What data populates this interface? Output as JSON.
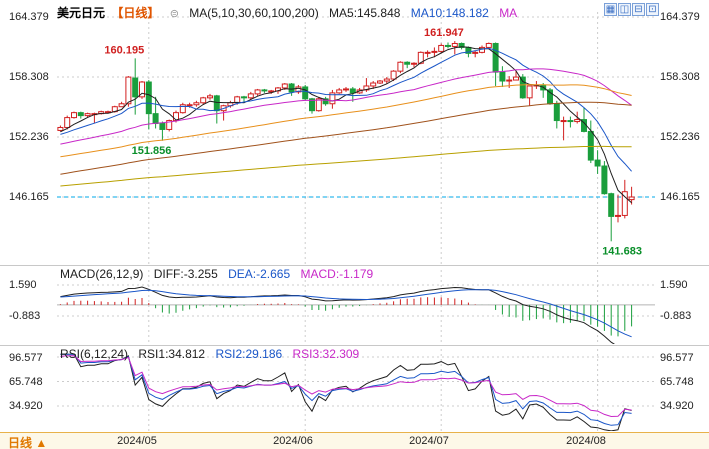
{
  "header": {
    "title": "美元日元",
    "period_tag": "【日线】",
    "settings_icon_glyph": "⊜",
    "ma_group_label": "MA(5,10,30,60,100,200)",
    "ma5_label": "MA5:145.848",
    "ma10_label": "MA10:148.182",
    "ma_extra_label": "MA"
  },
  "toolbar": {
    "icons": [
      "grid-layout",
      "dual-vertical",
      "dual-horizontal",
      "single-view"
    ]
  },
  "price_panel": {
    "axis_labels": [
      "164.379",
      "158.308",
      "152.236",
      "146.165"
    ]
  },
  "macd_panel": {
    "indicator_label": "MACD(26,12,9)",
    "diff_label": "DIFF:-3.255",
    "dea_label": "DEA:-2.665",
    "macd_label": "MACD:-1.179",
    "axis_labels": [
      "1.590",
      "-0.883"
    ]
  },
  "rsi_panel": {
    "indicator_label": "RSI(6,12,24)",
    "rsi1_label": "RSI1:34.812",
    "rsi2_label": "RSI2:29.186",
    "rsi3_label": "RSI3:32.309",
    "axis_labels": [
      "96.577",
      "65.748",
      "34.920"
    ]
  },
  "footer": {
    "period_label": "日线",
    "period_arrow": "▲",
    "dates": [
      "2024/05",
      "2024/06",
      "2024/07",
      "2024/08"
    ]
  },
  "colors": {
    "up": "#d22020",
    "down": "#1a9e3c",
    "ma": [
      "#202020",
      "#1a56c8",
      "#c828c8",
      "#e8901c",
      "#a0521c",
      "#b8a000"
    ],
    "diff": "#202020",
    "dea": "#1a56c8",
    "macd_value": "#c828c8",
    "last_price_line": "#00a8e8",
    "period_accent": "#e07800",
    "tag_accent": "#e05500"
  },
  "chart_data": {
    "type": "candlestick",
    "symbol": "美元日元 (USD/JPY)",
    "period": "daily",
    "last_price": 146.165,
    "price_axis": [
      164.379,
      158.308,
      152.236,
      146.165
    ],
    "macd_axis": [
      1.59,
      -0.883
    ],
    "rsi_axis": [
      96.577,
      65.748,
      34.92
    ],
    "indicators": {
      "ma_periods": [
        5,
        10,
        30,
        60,
        100,
        200
      ],
      "macd": [
        26,
        12,
        9
      ],
      "rsi": [
        6,
        12,
        24
      ]
    },
    "indicator_values": {
      "ma5": 145.848,
      "ma10": 148.182,
      "diff": -3.255,
      "dea": -2.665,
      "macd": -1.179,
      "rsi1": 34.812,
      "rsi2": 29.186,
      "rsi3": 32.309
    },
    "annotations": [
      {
        "text": "160.195",
        "index": 11,
        "value": 160.195,
        "position": "above",
        "align": "end",
        "color": "#d02020"
      },
      {
        "text": "161.947",
        "index": 58,
        "value": 161.947,
        "position": "above",
        "align": "end",
        "color": "#d02020"
      },
      {
        "text": "151.856",
        "index": 15,
        "value": 151.856,
        "position": "below",
        "align": "end",
        "color": "#0a8f2a"
      },
      {
        "text": "141.683",
        "index": 81,
        "value": 141.683,
        "position": "below",
        "align": "start",
        "color": "#0a8f2a"
      }
    ],
    "candles": [
      [
        "04/12",
        152.9,
        153.4,
        152.8,
        153.2
      ],
      [
        "04/15",
        153.2,
        154.4,
        153.0,
        154.2
      ],
      [
        "04/16",
        154.2,
        154.8,
        154.1,
        154.7
      ],
      [
        "04/17",
        154.7,
        154.8,
        154.1,
        154.4
      ],
      [
        "04/18",
        154.4,
        154.7,
        154.2,
        154.6
      ],
      [
        "04/19",
        154.6,
        154.7,
        153.6,
        154.6
      ],
      [
        "04/22",
        154.6,
        154.9,
        154.5,
        154.8
      ],
      [
        "04/23",
        154.8,
        154.9,
        154.6,
        154.8
      ],
      [
        "04/24",
        154.8,
        155.4,
        154.7,
        155.3
      ],
      [
        "04/25",
        155.3,
        155.8,
        155.3,
        155.6
      ],
      [
        "04/26",
        155.6,
        158.4,
        155.3,
        158.3
      ],
      [
        "04/29",
        158.2,
        160.195,
        154.5,
        156.3
      ],
      [
        "04/30",
        156.3,
        157.9,
        156.1,
        157.8
      ],
      [
        "05/01",
        157.8,
        158.0,
        153.0,
        154.6
      ],
      [
        "05/02",
        154.6,
        156.3,
        153.1,
        153.6
      ],
      [
        "05/03",
        153.6,
        153.8,
        151.856,
        153.0
      ],
      [
        "05/06",
        153.0,
        154.0,
        152.8,
        153.9
      ],
      [
        "05/07",
        153.9,
        154.9,
        153.7,
        154.7
      ],
      [
        "05/08",
        154.7,
        155.7,
        154.6,
        155.5
      ],
      [
        "05/09",
        155.5,
        155.7,
        155.2,
        155.5
      ],
      [
        "05/10",
        155.5,
        155.9,
        155.3,
        155.7
      ],
      [
        "05/13",
        155.7,
        156.3,
        155.5,
        156.2
      ],
      [
        "05/14",
        156.2,
        156.6,
        156.0,
        156.4
      ],
      [
        "05/15",
        156.4,
        156.5,
        153.6,
        154.9
      ],
      [
        "05/16",
        154.9,
        155.5,
        153.9,
        155.4
      ],
      [
        "05/17",
        155.4,
        155.9,
        155.2,
        155.7
      ],
      [
        "05/20",
        155.7,
        156.4,
        155.5,
        156.3
      ],
      [
        "05/21",
        156.3,
        156.4,
        155.8,
        156.2
      ],
      [
        "05/22",
        156.2,
        156.8,
        156.0,
        156.6
      ],
      [
        "05/23",
        156.6,
        157.1,
        156.4,
        157.0
      ],
      [
        "05/24",
        157.0,
        157.1,
        156.7,
        156.9
      ],
      [
        "05/27",
        156.9,
        157.0,
        156.6,
        156.9
      ],
      [
        "05/28",
        156.9,
        157.3,
        156.6,
        157.2
      ],
      [
        "05/29",
        157.2,
        157.7,
        157.0,
        157.6
      ],
      [
        "05/30",
        157.6,
        157.7,
        156.4,
        156.8
      ],
      [
        "05/31",
        156.8,
        157.5,
        156.6,
        157.3
      ],
      [
        "06/03",
        157.3,
        157.5,
        155.9,
        156.1
      ],
      [
        "06/04",
        156.1,
        156.2,
        154.6,
        154.9
      ],
      [
        "06/05",
        154.9,
        156.3,
        154.8,
        156.1
      ],
      [
        "06/06",
        156.1,
        156.3,
        155.4,
        155.6
      ],
      [
        "06/07",
        155.6,
        157.0,
        155.1,
        156.7
      ],
      [
        "06/10",
        156.7,
        157.2,
        156.6,
        157.0
      ],
      [
        "06/11",
        157.0,
        157.3,
        156.8,
        157.1
      ],
      [
        "06/12",
        157.1,
        157.3,
        155.8,
        156.7
      ],
      [
        "06/13",
        156.7,
        157.2,
        156.6,
        157.0
      ],
      [
        "06/14",
        157.0,
        158.2,
        156.8,
        157.4
      ],
      [
        "06/17",
        157.4,
        157.9,
        157.1,
        157.7
      ],
      [
        "06/18",
        157.7,
        158.0,
        157.6,
        157.9
      ],
      [
        "06/19",
        157.9,
        158.3,
        157.6,
        158.1
      ],
      [
        "06/20",
        158.1,
        159.0,
        157.9,
        158.9
      ],
      [
        "06/21",
        158.9,
        159.9,
        158.7,
        159.8
      ],
      [
        "06/24",
        159.8,
        159.9,
        159.2,
        159.6
      ],
      [
        "06/25",
        159.6,
        159.8,
        159.3,
        159.7
      ],
      [
        "06/26",
        159.7,
        160.9,
        159.6,
        160.8
      ],
      [
        "06/27",
        160.8,
        161.0,
        160.3,
        160.8
      ],
      [
        "06/28",
        160.8,
        161.3,
        160.3,
        160.9
      ],
      [
        "07/01",
        160.9,
        161.7,
        160.7,
        161.5
      ],
      [
        "07/02",
        161.5,
        161.8,
        161.2,
        161.4
      ],
      [
        "07/03",
        161.4,
        161.947,
        160.6,
        161.7
      ],
      [
        "07/04",
        161.7,
        161.8,
        161.1,
        161.3
      ],
      [
        "07/05",
        161.3,
        161.4,
        160.3,
        160.7
      ],
      [
        "07/08",
        160.7,
        161.0,
        160.3,
        160.8
      ],
      [
        "07/09",
        160.8,
        161.5,
        160.7,
        161.3
      ],
      [
        "07/10",
        161.3,
        161.8,
        161.1,
        161.7
      ],
      [
        "07/11",
        161.7,
        161.8,
        157.4,
        158.8
      ],
      [
        "07/12",
        158.8,
        159.4,
        157.3,
        157.9
      ],
      [
        "07/15",
        157.9,
        158.4,
        157.2,
        158.0
      ],
      [
        "07/16",
        158.0,
        158.9,
        158.0,
        158.3
      ],
      [
        "07/17",
        158.3,
        158.6,
        156.1,
        156.2
      ],
      [
        "07/18",
        156.2,
        157.4,
        155.4,
        157.4
      ],
      [
        "07/19",
        157.4,
        157.9,
        157.1,
        157.5
      ],
      [
        "07/22",
        157.5,
        157.7,
        156.2,
        157.0
      ],
      [
        "07/23",
        157.0,
        157.2,
        155.5,
        155.6
      ],
      [
        "07/24",
        155.6,
        155.9,
        153.1,
        153.9
      ],
      [
        "07/25",
        153.9,
        154.3,
        151.9,
        153.9
      ],
      [
        "07/26",
        153.9,
        154.3,
        153.2,
        153.8
      ],
      [
        "07/29",
        153.8,
        154.8,
        153.6,
        154.0
      ],
      [
        "07/30",
        154.0,
        155.2,
        152.7,
        152.8
      ],
      [
        "07/31",
        152.8,
        153.9,
        149.6,
        149.9
      ],
      [
        "08/01",
        149.9,
        150.9,
        148.5,
        149.3
      ],
      [
        "08/02",
        149.3,
        149.8,
        146.4,
        146.5
      ],
      [
        "08/05",
        146.5,
        146.6,
        141.683,
        144.2
      ],
      [
        "08/06",
        144.2,
        146.4,
        143.6,
        144.3
      ],
      [
        "08/07",
        144.3,
        147.9,
        144.0,
        146.7
      ],
      [
        "08/08",
        145.9,
        147.2,
        145.4,
        146.165
      ]
    ]
  }
}
